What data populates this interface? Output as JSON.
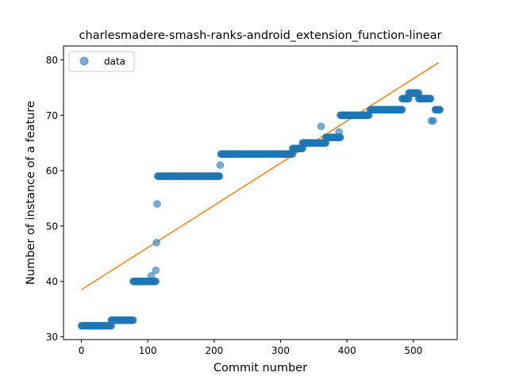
{
  "chart_data": {
    "type": "scatter",
    "title": "charlesmadere-smash-ranks-android_extension_function-linear",
    "xlabel": "Commit number",
    "ylabel": "Number of instance of a feature",
    "xlim": [
      -27,
      566
    ],
    "ylim": [
      29.5,
      82.5
    ],
    "x_ticks": [
      0,
      100,
      200,
      300,
      400,
      500
    ],
    "y_ticks": [
      30,
      40,
      50,
      60,
      70,
      80
    ],
    "grid": false,
    "legend": {
      "position": "top-left",
      "entries": [
        "data"
      ]
    },
    "colors": {
      "data": "#1f77b4",
      "fit": "#ff7f0e"
    },
    "series": [
      {
        "name": "data",
        "kind": "points",
        "segments": [
          {
            "x_start": 0,
            "x_end": 45,
            "y": 32
          },
          {
            "x_start": 45,
            "x_end": 78,
            "y": 33
          },
          {
            "x_start": 78,
            "x_end": 112,
            "y": 40
          },
          {
            "x_start": 115,
            "x_end": 208,
            "y": 59
          },
          {
            "x_start": 210,
            "x_end": 318,
            "y": 63
          },
          {
            "x_start": 318,
            "x_end": 333,
            "y": 64
          },
          {
            "x_start": 333,
            "x_end": 368,
            "y": 65
          },
          {
            "x_start": 368,
            "x_end": 390,
            "y": 66
          },
          {
            "x_start": 390,
            "x_end": 433,
            "y": 70
          },
          {
            "x_start": 435,
            "x_end": 483,
            "y": 71
          },
          {
            "x_start": 483,
            "x_end": 493,
            "y": 73
          },
          {
            "x_start": 493,
            "x_end": 508,
            "y": 74
          },
          {
            "x_start": 508,
            "x_end": 526,
            "y": 73
          },
          {
            "x_start": 533,
            "x_end": 540,
            "y": 71
          }
        ],
        "points": [
          {
            "x": 105,
            "y": 41
          },
          {
            "x": 112,
            "y": 42
          },
          {
            "x": 113,
            "y": 47
          },
          {
            "x": 114,
            "y": 54
          },
          {
            "x": 209,
            "y": 61
          },
          {
            "x": 361,
            "y": 68
          },
          {
            "x": 388,
            "y": 67
          },
          {
            "x": 527,
            "y": 69
          },
          {
            "x": 530,
            "y": 69
          }
        ]
      },
      {
        "name": "",
        "kind": "line",
        "x": [
          0,
          538
        ],
        "y": [
          38.5,
          79.5
        ]
      }
    ]
  }
}
